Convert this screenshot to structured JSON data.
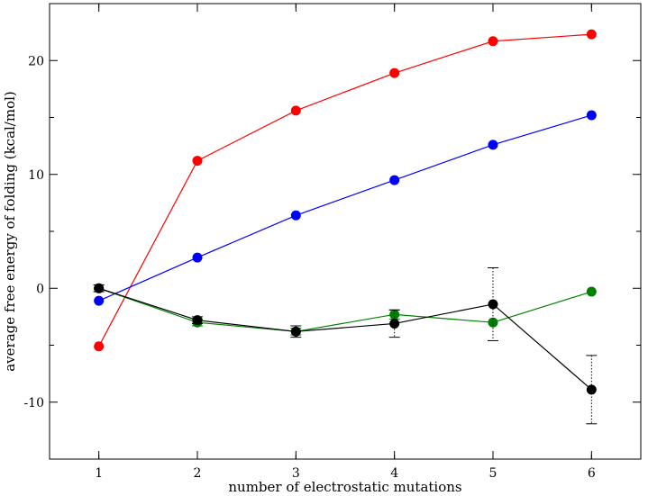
{
  "chart_data": {
    "type": "line",
    "title": "",
    "xlabel": "number of electrostatic mutations",
    "ylabel": "average free energy of folding (kcal/mol)",
    "xlim": [
      0.5,
      6.5
    ],
    "ylim": [
      -15,
      25
    ],
    "x_ticks": [
      1,
      2,
      3,
      4,
      5,
      6
    ],
    "y_ticks": [
      -10,
      0,
      10,
      20
    ],
    "grid": false,
    "legend": "none",
    "x": [
      1,
      2,
      3,
      4,
      5,
      6
    ],
    "series": [
      {
        "color": "#ff0000",
        "values": [
          -5.1,
          11.2,
          15.6,
          18.9,
          21.7,
          22.3
        ]
      },
      {
        "color": "#0000ff",
        "values": [
          -1.1,
          2.7,
          6.4,
          9.5,
          12.6,
          15.2
        ]
      },
      {
        "color": "#008000",
        "values": [
          0.0,
          -3.0,
          -3.8,
          -2.3,
          -3.0,
          -0.3
        ],
        "errors": [
          0.3,
          0.3,
          0.3,
          0.4,
          0.0,
          0.0
        ]
      },
      {
        "color": "#000000",
        "values": [
          0.0,
          -2.8,
          -3.8,
          -3.1,
          -1.4,
          -8.9
        ],
        "errors": [
          0.3,
          0.3,
          0.5,
          1.2,
          3.2,
          3.0
        ]
      }
    ]
  }
}
